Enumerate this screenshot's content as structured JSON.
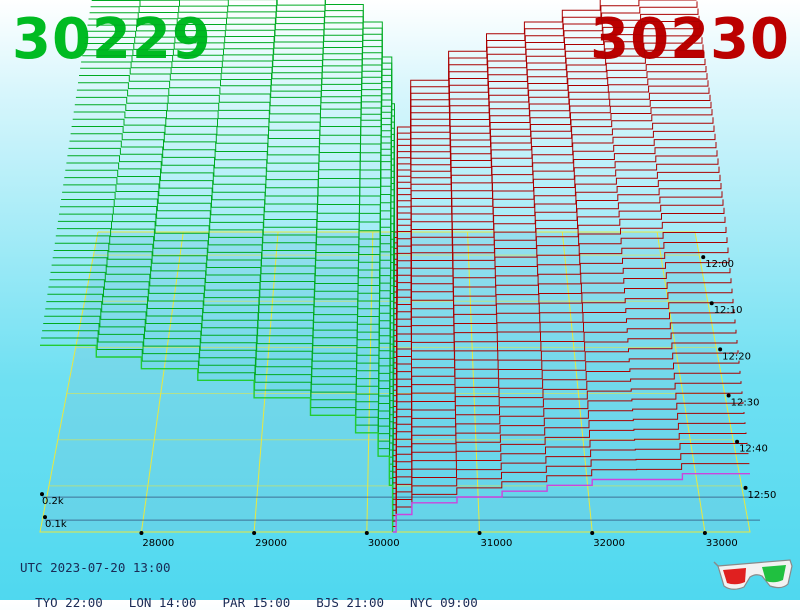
{
  "header": {
    "bid_price": "30229",
    "ask_price": "30230",
    "bid_color": "#00bb22",
    "ask_color": "#bb0000"
  },
  "footer": {
    "utc_label": "UTC 2023-07-20 13:00",
    "zones": [
      "TYO 22:00",
      "LON 14:00",
      "PAR 15:00",
      "BJS 21:00",
      "NYC 09:00"
    ]
  },
  "icon": "3d-glasses-icon",
  "chart_data": {
    "type": "area",
    "title": "",
    "x_ticks": [
      "28000",
      "29000",
      "30000",
      "31000",
      "32000",
      "33000"
    ],
    "x_range": [
      27100,
      33400
    ],
    "mid_price": 30230,
    "time_ticks": [
      "12:00",
      "12:10",
      "12:20",
      "12:30",
      "12:40",
      "12:50"
    ],
    "time_range": [
      "11:55",
      "13:00"
    ],
    "depth_ticks": [
      "0.2k",
      "0.1k"
    ],
    "depth_range": [
      0,
      0.48
    ],
    "series": [
      {
        "name": "",
        "side": "bid",
        "color": "#00aa22",
        "snapshots": [
          {
            "time": "11:55",
            "price": [
              27100,
              27600,
              28000,
              28500,
              29000,
              29500,
              29900,
              30100,
              30200,
              30229
            ],
            "depth": [
              0.46,
              0.45,
              0.44,
              0.43,
              0.41,
              0.39,
              0.36,
              0.3,
              0.22,
              0.0
            ]
          },
          {
            "time": "12:15",
            "price": [
              27100,
              27600,
              28000,
              28500,
              29000,
              29500,
              29900,
              30100,
              30200,
              30229
            ],
            "depth": [
              0.44,
              0.43,
              0.42,
              0.41,
              0.39,
              0.37,
              0.34,
              0.28,
              0.2,
              0.0
            ]
          },
          {
            "time": "12:30",
            "price": [
              27100,
              27600,
              28000,
              28500,
              29000,
              29500,
              29900,
              30100,
              30200,
              30229
            ],
            "depth": [
              0.4,
              0.39,
              0.37,
              0.35,
              0.33,
              0.3,
              0.27,
              0.22,
              0.15,
              0.0
            ]
          },
          {
            "time": "13:00",
            "price": [
              27100,
              27600,
              28000,
              28500,
              29000,
              29500,
              29900,
              30100,
              30200,
              30229
            ],
            "depth": [
              0.32,
              0.3,
              0.28,
              0.26,
              0.23,
              0.2,
              0.17,
              0.13,
              0.08,
              0.0
            ]
          }
        ]
      },
      {
        "name": "",
        "side": "ask",
        "color": "#aa0000",
        "snapshots": [
          {
            "time": "11:55",
            "price": [
              30230,
              30260,
              30400,
              30800,
              31200,
              31600,
              32000,
              32400,
              32800,
              33400
            ],
            "depth": [
              0.0,
              0.18,
              0.26,
              0.31,
              0.34,
              0.36,
              0.38,
              0.4,
              0.41,
              0.42
            ]
          },
          {
            "time": "12:15",
            "price": [
              30230,
              30260,
              30400,
              30800,
              31200,
              31600,
              32000,
              32400,
              32800,
              33400
            ],
            "depth": [
              0.0,
              0.16,
              0.23,
              0.27,
              0.3,
              0.32,
              0.34,
              0.35,
              0.36,
              0.37
            ]
          },
          {
            "time": "12:30",
            "price": [
              30230,
              30260,
              30400,
              30800,
              31200,
              31600,
              32000,
              32400,
              32800,
              33400
            ],
            "depth": [
              0.0,
              0.12,
              0.18,
              0.22,
              0.24,
              0.26,
              0.28,
              0.29,
              0.3,
              0.31
            ]
          },
          {
            "time": "13:00",
            "price": [
              30230,
              30260,
              30400,
              30800,
              31200,
              31600,
              32000,
              32400,
              32800,
              33400
            ],
            "depth": [
              0.0,
              0.03,
              0.05,
              0.06,
              0.07,
              0.08,
              0.09,
              0.09,
              0.1,
              0.1
            ]
          }
        ]
      }
    ],
    "grid": true
  }
}
